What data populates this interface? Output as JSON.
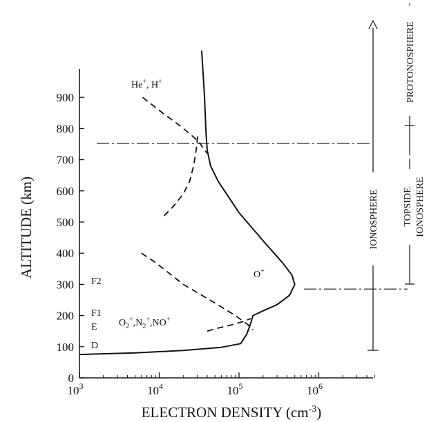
{
  "chart_data": {
    "type": "line",
    "xlabel": "ELECTRON DENSITY (cm",
    "xlabel_exp": "-3",
    "xlabel_close": ")",
    "ylabel": "ALTITUDE (km)",
    "xscale": "log",
    "xlim": [
      1000,
      5000000
    ],
    "ylim": [
      0,
      1020
    ],
    "grid": false,
    "xticks": [
      {
        "value": 1000,
        "base": "10",
        "exp": "3"
      },
      {
        "value": 10000,
        "base": "10",
        "exp": "4"
      },
      {
        "value": 100000,
        "base": "10",
        "exp": "5"
      },
      {
        "value": 1000000,
        "base": "10",
        "exp": "6"
      }
    ],
    "yticks": [
      0,
      100,
      200,
      300,
      400,
      500,
      600,
      700,
      800,
      900
    ],
    "series": [
      {
        "name": "",
        "style": "solid",
        "points": [
          [
            1000,
            75
          ],
          [
            5000,
            80
          ],
          [
            20000,
            88
          ],
          [
            60000,
            98
          ],
          [
            105000,
            110
          ],
          [
            125000,
            140
          ],
          [
            140000,
            175
          ],
          [
            150000,
            200
          ],
          [
            200000,
            215
          ],
          [
            300000,
            235
          ],
          [
            430000,
            265
          ],
          [
            500000,
            300
          ],
          [
            460000,
            330
          ],
          [
            350000,
            370
          ],
          [
            200000,
            440
          ],
          [
            100000,
            530
          ],
          [
            55000,
            630
          ],
          [
            44000,
            680
          ],
          [
            40000,
            730
          ],
          [
            38500,
            790
          ],
          [
            37000,
            900
          ],
          [
            35000,
            1000
          ],
          [
            34000,
            1050
          ]
        ]
      },
      {
        "name": "He+, H+",
        "style": "dashed",
        "points": [
          [
            6200,
            900
          ],
          [
            11000,
            850
          ],
          [
            18000,
            810
          ],
          [
            25000,
            780
          ],
          [
            32000,
            755
          ],
          [
            36000,
            735
          ],
          [
            40000,
            720
          ]
        ]
      },
      {
        "name": "He+, H+ (lower branch)",
        "style": "dashed",
        "points": [
          [
            11500,
            520
          ],
          [
            15000,
            550
          ],
          [
            20000,
            590
          ],
          [
            24000,
            630
          ],
          [
            27000,
            680
          ],
          [
            29000,
            730
          ],
          [
            30500,
            780
          ]
        ]
      },
      {
        "name": "O+",
        "style": "dashed",
        "points": [
          [
            6000,
            400
          ],
          [
            9000,
            370
          ],
          [
            20000,
            300
          ],
          [
            50000,
            240
          ],
          [
            90000,
            200
          ],
          [
            130000,
            170
          ],
          [
            150000,
            155
          ]
        ]
      },
      {
        "name": "O2+,N2+,NO+",
        "style": "dashed",
        "points": [
          [
            40000,
            150
          ],
          [
            55000,
            160
          ],
          [
            80000,
            170
          ],
          [
            110000,
            180
          ],
          [
            140000,
            190
          ]
        ]
      }
    ],
    "reference_lines": [
      {
        "axis": "y",
        "value": 752,
        "style": "dash-dot"
      },
      {
        "axis": "y",
        "value": 285,
        "style": "dash-dot"
      }
    ],
    "annotations": {
      "he_h": {
        "label": "He",
        "sup1": "+",
        "sep": ", H",
        "sup2": "+"
      },
      "o_plus": {
        "label": "O",
        "sup": "+"
      },
      "molecular": {
        "o": "O",
        "o_sub": "2",
        "o_sup": "+",
        "n": ",N",
        "n_sub": "2",
        "n_sup": "+",
        "no": ",NO",
        "no_sup": "+"
      },
      "layers": {
        "f2": "F2",
        "f1": "F1",
        "e": "E",
        "d": "D"
      }
    },
    "regions": {
      "ionosphere": "IONOSPHERE",
      "protonosphere": "PROTONOSPHERE",
      "topside_1": "TOPSIDE",
      "topside_2": "IONOSPHERE"
    }
  }
}
